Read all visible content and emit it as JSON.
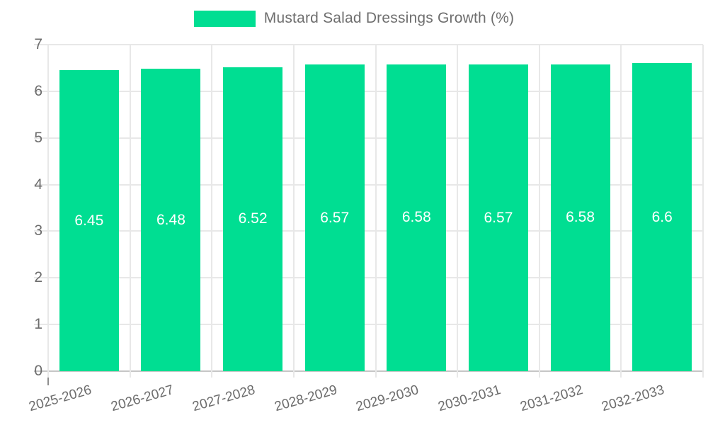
{
  "legend": {
    "label": "Mustard Salad Dressings Growth (%)"
  },
  "chart_data": {
    "type": "bar",
    "title": "Mustard Salad Dressings Growth (%)",
    "categories": [
      "2025-2026",
      "2026-2027",
      "2027-2028",
      "2028-2029",
      "2029-2030",
      "2030-2031",
      "2031-2032",
      "2032-2033"
    ],
    "series": [
      {
        "name": "Mustard Salad Dressings Growth (%)",
        "values": [
          6.45,
          6.48,
          6.52,
          6.57,
          6.58,
          6.57,
          6.58,
          6.6
        ]
      }
    ],
    "value_labels": [
      "6.45",
      "6.48",
      "6.52",
      "6.57",
      "6.58",
      "6.57",
      "6.58",
      "6.6"
    ],
    "xlabel": "",
    "ylabel": "",
    "ylim": [
      0,
      7
    ],
    "yticks": [
      0,
      1,
      2,
      3,
      4,
      5,
      6,
      7
    ],
    "grid": true,
    "legend_position": "top-center",
    "colors": {
      "bar": "#00de92",
      "value_label": "#ffffff",
      "axis_text": "#6c6c6c",
      "gridline": "#e8e8e8",
      "axis_line": "#8f8f8f",
      "baseline": "#c6c6c6"
    }
  }
}
